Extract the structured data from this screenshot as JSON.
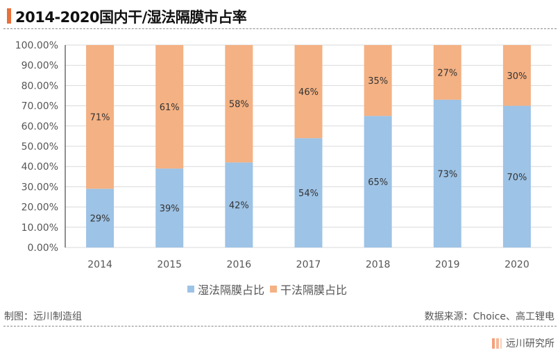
{
  "title": "2014-2020国内干/湿法隔膜市占率",
  "footer": {
    "left": "制图：远川制造组",
    "right": "数据来源：Choice、高工锂电",
    "brand": "远川研究所"
  },
  "colors": {
    "wet": "#9dc3e6",
    "dry": "#f4b183",
    "accent": "#e8703a"
  },
  "chart_data": {
    "type": "bar",
    "stacked": true,
    "categories": [
      "2014",
      "2015",
      "2016",
      "2017",
      "2018",
      "2019",
      "2020"
    ],
    "series": [
      {
        "name": "湿法隔膜占比",
        "values": [
          29,
          39,
          42,
          54,
          65,
          73,
          70
        ],
        "labels": [
          "29%",
          "39%",
          "42%",
          "54%",
          "65%",
          "73%",
          "70%"
        ]
      },
      {
        "name": "干法隔膜占比",
        "values": [
          71,
          61,
          58,
          46,
          35,
          27,
          30
        ],
        "labels": [
          "71%",
          "61%",
          "58%",
          "46%",
          "35%",
          "27%",
          "30%"
        ]
      }
    ],
    "yticks": [
      "0.00%",
      "10.00%",
      "20.00%",
      "30.00%",
      "40.00%",
      "50.00%",
      "60.00%",
      "70.00%",
      "80.00%",
      "90.00%",
      "100.00%"
    ],
    "ylim": [
      0,
      100
    ],
    "grid": true,
    "legend": "bottom"
  }
}
